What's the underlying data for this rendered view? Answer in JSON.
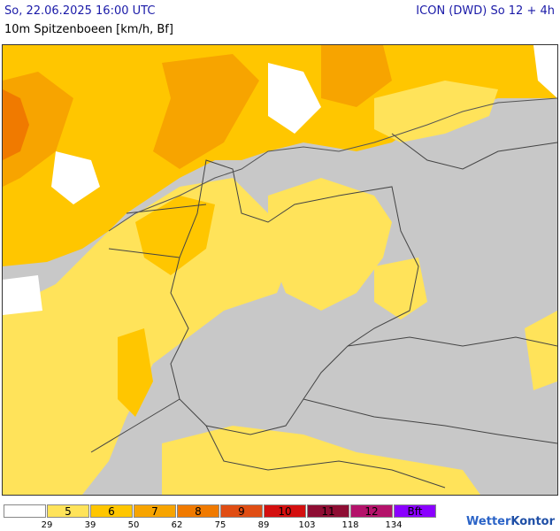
{
  "header": {
    "datetime": "So, 22.06.2025 16:00 UTC",
    "model": "ICON (DWD) So 12 + 4h",
    "parameter": "10m Spitzenboeen [km/h, Bf]"
  },
  "colors": {
    "land_grey": "#c8c8c8",
    "bf5": "#ffe35a",
    "bf6": "#ffc600",
    "bf7": "#f7a400",
    "bf8": "#f07a00",
    "bf9": "#e04d13",
    "bf10": "#d40f0f",
    "bf11": "#8e0d33",
    "bf12": "#b4126a",
    "bf13": "#8a00ff",
    "border": "#444444",
    "water": "#ffffff"
  },
  "legend": {
    "classes": [
      {
        "label": "",
        "color": "#ffffff"
      },
      {
        "label": "5",
        "color": "#ffe35a"
      },
      {
        "label": "6",
        "color": "#ffc600"
      },
      {
        "label": "7",
        "color": "#f7a400"
      },
      {
        "label": "8",
        "color": "#f07a00"
      },
      {
        "label": "9",
        "color": "#e04d13"
      },
      {
        "label": "10",
        "color": "#d40f0f"
      },
      {
        "label": "11",
        "color": "#8e0d33"
      },
      {
        "label": "12",
        "color": "#b4126a"
      },
      {
        "label": "Bft",
        "color": "#8a00ff"
      }
    ],
    "ticks": [
      "29",
      "39",
      "50",
      "62",
      "75",
      "89",
      "103",
      "118",
      "134"
    ]
  },
  "brand": {
    "name_a": "Wetter",
    "name_b": "Kontor"
  }
}
